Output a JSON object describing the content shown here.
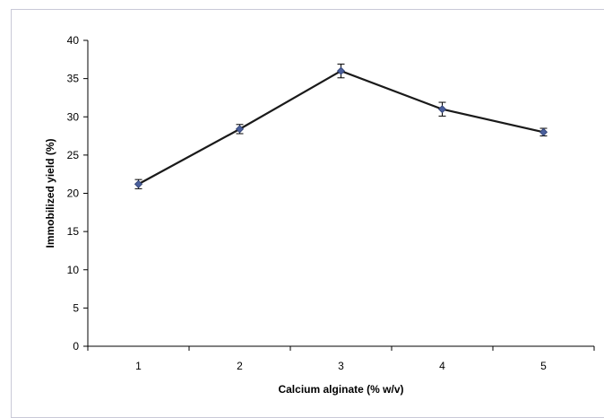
{
  "chart_data": {
    "type": "line",
    "title": "",
    "xlabel": "Calcium alginate (% w/v)",
    "ylabel": "Immobilized  yield (%)",
    "categories": [
      "1",
      "2",
      "3",
      "4",
      "5"
    ],
    "ylim": [
      0,
      40
    ],
    "yticks": [
      "0",
      "5",
      "10",
      "15",
      "20",
      "25",
      "30",
      "35",
      "40"
    ],
    "series": [
      {
        "values": [
          21.2,
          28.4,
          36.0,
          31.0,
          28.0
        ],
        "errors": [
          0.6,
          0.6,
          0.9,
          0.9,
          0.5
        ],
        "color": "#1a1a1a",
        "marker_color": "#4a5f9c"
      }
    ],
    "grid": false,
    "legend": "none"
  }
}
